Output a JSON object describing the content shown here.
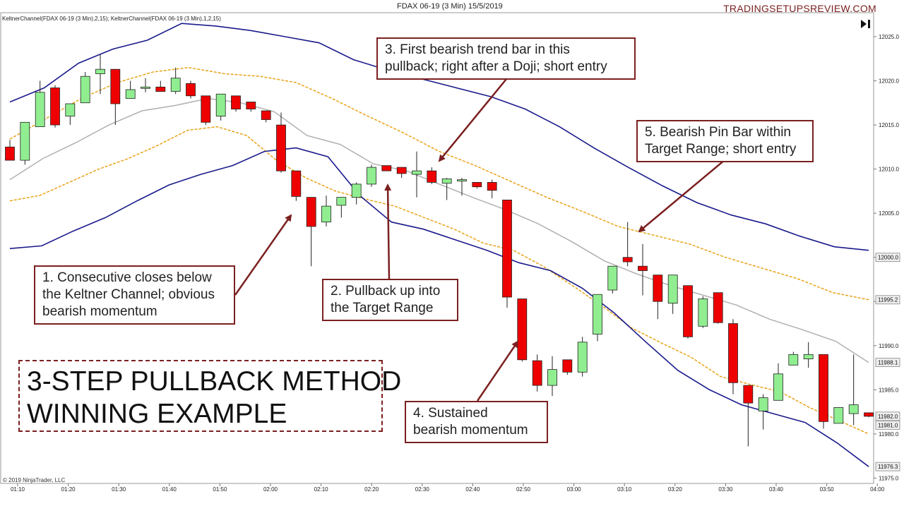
{
  "header": {
    "title": "FDAX 06-19 (3 Min)  15/5/2019",
    "brand": "TRADINGSETUPSREVIEW.COM",
    "indicator_label": "KeltnerChannel(FDAX 06-19 (3 Min),2,15); KeltnerChannel(FDAX 06-19 (3 Min),1,2,15)",
    "copyright": "© 2019 NinjaTrader, LLC"
  },
  "headline": {
    "line1": "3-STEP PULLBACK METHOD",
    "line2": "WINNING EXAMPLE"
  },
  "annotations": [
    {
      "id": "a1",
      "lines": [
        "1. Consecutive closes below",
        "the Keltner Channel; obvious",
        "bearish momentum"
      ]
    },
    {
      "id": "a2",
      "lines": [
        "2. Pullback up into",
        "the Target Range"
      ]
    },
    {
      "id": "a3",
      "lines": [
        "3. First bearish trend bar in this",
        "pullback; right after a Doji; short entry"
      ]
    },
    {
      "id": "a4",
      "lines": [
        "4. Sustained",
        "bearish momentum"
      ]
    },
    {
      "id": "a5",
      "lines": [
        "5. Bearish Pin Bar within",
        "Target Range; short entry"
      ]
    }
  ],
  "colors": {
    "bull": "#90ee90",
    "bear": "#ee0000",
    "outer_band": "#1a1a8c",
    "inner_band": "#e8a317",
    "mid_line": "#b0b0b0",
    "annotation": "#7b2020"
  },
  "chart_data": {
    "type": "candlestick",
    "y_axis": {
      "range": [
        11974,
        12027
      ],
      "ticks": [
        11975.0,
        11980.0,
        11985.0,
        11990.0,
        11995.0,
        12000.0,
        12005.0,
        12010.0,
        12015.0,
        12020.0,
        12025.0
      ],
      "price_markers": [
        "12000.0",
        "11995.2",
        "11988.1",
        "11982.0",
        "11981.0",
        "11976.3"
      ]
    },
    "x_axis": {
      "ticks": [
        "01:10",
        "01:20",
        "01:30",
        "01:40",
        "01:50",
        "02:00",
        "02:10",
        "02:20",
        "02:30",
        "02:40",
        "02:50",
        "03:00",
        "03:10",
        "03:20",
        "03:30",
        "03:40",
        "03:50",
        "04:00"
      ]
    },
    "candles": [
      {
        "o": 12012.5,
        "h": 12013.3,
        "l": 12011.0,
        "c": 12011.0
      },
      {
        "o": 12011.0,
        "h": 12015.3,
        "l": 12010.5,
        "c": 12015.3
      },
      {
        "o": 12014.8,
        "h": 12020.0,
        "l": 12014.8,
        "c": 12018.7
      },
      {
        "o": 12019.2,
        "h": 12019.5,
        "l": 12014.7,
        "c": 12015.0
      },
      {
        "o": 12016.0,
        "h": 12017.4,
        "l": 12015.0,
        "c": 12017.4
      },
      {
        "o": 12017.5,
        "h": 12021.0,
        "l": 12017.5,
        "c": 12020.5
      },
      {
        "o": 12020.8,
        "h": 12023.0,
        "l": 12018.5,
        "c": 12021.3
      },
      {
        "o": 12021.3,
        "h": 12021.3,
        "l": 12015.0,
        "c": 12017.4
      },
      {
        "o": 12018.0,
        "h": 12020.0,
        "l": 12018.0,
        "c": 12019.0
      },
      {
        "o": 12019.3,
        "h": 12020.3,
        "l": 12018.7,
        "c": 12019.3
      },
      {
        "o": 12019.3,
        "h": 12020.0,
        "l": 12018.8,
        "c": 12018.8
      },
      {
        "o": 12018.8,
        "h": 12021.5,
        "l": 12018.5,
        "c": 12020.3
      },
      {
        "o": 12019.7,
        "h": 12020.0,
        "l": 12018.0,
        "c": 12018.3
      },
      {
        "o": 12018.3,
        "h": 12018.3,
        "l": 12015.0,
        "c": 12015.3
      },
      {
        "o": 12016.0,
        "h": 12018.5,
        "l": 12015.5,
        "c": 12018.5
      },
      {
        "o": 12018.3,
        "h": 12018.3,
        "l": 12016.5,
        "c": 12016.8
      },
      {
        "o": 12017.6,
        "h": 12017.6,
        "l": 12016.5,
        "c": 12016.8
      },
      {
        "o": 12016.6,
        "h": 12016.6,
        "l": 12015.3,
        "c": 12015.6
      },
      {
        "o": 12015.0,
        "h": 12016.4,
        "l": 12009.6,
        "c": 12009.8
      },
      {
        "o": 12009.8,
        "h": 12009.8,
        "l": 12006.4,
        "c": 12006.9
      },
      {
        "o": 12006.8,
        "h": 12006.8,
        "l": 11999.0,
        "c": 12003.5
      },
      {
        "o": 12004.0,
        "h": 12007.0,
        "l": 12003.5,
        "c": 12005.8
      },
      {
        "o": 12005.9,
        "h": 12006.8,
        "l": 12004.5,
        "c": 12006.8
      },
      {
        "o": 12006.8,
        "h": 12008.5,
        "l": 12006.0,
        "c": 12008.3
      },
      {
        "o": 12008.3,
        "h": 12010.5,
        "l": 12008.0,
        "c": 12010.2
      },
      {
        "o": 12010.4,
        "h": 12010.4,
        "l": 12009.8,
        "c": 12009.8
      },
      {
        "o": 12010.2,
        "h": 12010.2,
        "l": 12009.0,
        "c": 12009.5
      },
      {
        "o": 12009.4,
        "h": 12012.0,
        "l": 12006.8,
        "c": 12009.8
      },
      {
        "o": 12009.8,
        "h": 12010.2,
        "l": 12008.3,
        "c": 12008.5
      },
      {
        "o": 12008.4,
        "h": 12009.0,
        "l": 12006.5,
        "c": 12008.9
      },
      {
        "o": 12008.8,
        "h": 12009.0,
        "l": 12007.0,
        "c": 12008.8
      },
      {
        "o": 12008.5,
        "h": 12008.5,
        "l": 12007.8,
        "c": 12008.0
      },
      {
        "o": 12008.5,
        "h": 12008.8,
        "l": 12006.7,
        "c": 12007.6
      },
      {
        "o": 12006.5,
        "h": 12006.5,
        "l": 11994.3,
        "c": 11995.5
      },
      {
        "o": 11995.3,
        "h": 11995.3,
        "l": 11988.2,
        "c": 11988.4
      },
      {
        "o": 11988.3,
        "h": 11989.0,
        "l": 11984.8,
        "c": 11985.5
      },
      {
        "o": 11985.5,
        "h": 11988.8,
        "l": 11984.3,
        "c": 11987.3
      },
      {
        "o": 11988.4,
        "h": 11988.4,
        "l": 11986.7,
        "c": 11987.0
      },
      {
        "o": 11987.0,
        "h": 11991.0,
        "l": 11986.5,
        "c": 11990.4
      },
      {
        "o": 11991.3,
        "h": 11995.8,
        "l": 11990.5,
        "c": 11995.8
      },
      {
        "o": 11996.3,
        "h": 11999.0,
        "l": 11995.9,
        "c": 11999.0
      },
      {
        "o": 12000.0,
        "h": 12004.0,
        "l": 11999.0,
        "c": 11999.5
      },
      {
        "o": 11999.0,
        "h": 12001.5,
        "l": 11995.7,
        "c": 11998.5
      },
      {
        "o": 11998.0,
        "h": 11998.0,
        "l": 11993.0,
        "c": 11995.0
      },
      {
        "o": 11994.8,
        "h": 11998.0,
        "l": 11993.6,
        "c": 11998.0
      },
      {
        "o": 11996.8,
        "h": 11996.8,
        "l": 11990.8,
        "c": 11991.0
      },
      {
        "o": 11992.2,
        "h": 11995.6,
        "l": 11992.0,
        "c": 11995.3
      },
      {
        "o": 11996.0,
        "h": 11996.0,
        "l": 11992.5,
        "c": 11992.6
      },
      {
        "o": 11992.5,
        "h": 11993.0,
        "l": 11984.5,
        "c": 11985.8
      },
      {
        "o": 11985.5,
        "h": 11985.5,
        "l": 11978.6,
        "c": 11983.5
      },
      {
        "o": 11982.6,
        "h": 11984.5,
        "l": 11980.5,
        "c": 11984.1
      },
      {
        "o": 11983.8,
        "h": 11988.0,
        "l": 11983.8,
        "c": 11986.8
      },
      {
        "o": 11987.8,
        "h": 11989.3,
        "l": 11988.0,
        "c": 11989.0
      },
      {
        "o": 11988.5,
        "h": 11990.4,
        "l": 11987.5,
        "c": 11989.0
      },
      {
        "o": 11989.0,
        "h": 11989.0,
        "l": 11980.6,
        "c": 11981.4
      },
      {
        "o": 11981.2,
        "h": 11983.0,
        "l": 11981.2,
        "c": 11983.0
      },
      {
        "o": 11982.3,
        "h": 11989.0,
        "l": 11981.0,
        "c": 11983.3
      },
      {
        "o": 11982.4,
        "h": 11982.4,
        "l": 11981.9,
        "c": 11982.0
      }
    ],
    "keltner_outer_upper": [
      12017.6,
      12019.2,
      12022.0,
      12023.6,
      12024.6,
      12026.5,
      12026.2,
      12025.7,
      12025.0,
      12024.3,
      12022.4,
      12021.2,
      12020.2,
      12019.2,
      12018.2,
      12016.8,
      12014.8,
      12012.4,
      12010.2,
      12008.1,
      12006.2,
      12004.8,
      12003.8,
      12002.4,
      12001.2,
      12000.8
    ],
    "keltner_outer_lower": [
      12001.0,
      12001.3,
      12003.0,
      12004.5,
      12006.4,
      12008.2,
      12009.4,
      12010.4,
      12012.0,
      12012.4,
      12011.4,
      12007.0,
      12004.0,
      12003.2,
      12002.0,
      12000.8,
      11999.4,
      11998.5,
      11996.5,
      11993.7,
      11990.4,
      11987.2,
      11985.0,
      11983.3,
      11982.3,
      11981.3,
      11979.0,
      11976.3
    ],
    "keltner_inner_upper": [
      12013.4,
      12015.7,
      12018.0,
      12019.8,
      12021.0,
      12021.5,
      12020.8,
      12020.5,
      12019.8,
      12018.0,
      12016.0,
      12014.1,
      12012.0,
      12010.4,
      12008.6,
      12006.8,
      12005.2,
      12003.5,
      12002.5,
      12001.5,
      12000.0,
      11998.8,
      11997.6,
      11996.0,
      11995.2
    ],
    "keltner_inner_lower": [
      12006.4,
      12007.0,
      12008.5,
      12010.0,
      12011.2,
      12012.7,
      12014.4,
      12014.8,
      12013.8,
      12011.0,
      12009.0,
      12007.5,
      12006.6,
      12005.8,
      12004.5,
      12003.2,
      12001.6,
      12000.8,
      11999.0,
      11996.8,
      11994.5,
      11992.0,
      11990.3,
      11988.7,
      11986.5,
      11985.6,
      11984.8,
      11983.0,
      11981.5,
      11980.0
    ],
    "keltner_mid": [
      12008.8,
      12011.2,
      12013.0,
      12015.0,
      12016.6,
      12017.2,
      12018.0,
      12017.5,
      12016.5,
      12013.8,
      12012.8,
      12010.6,
      12009.8,
      12008.3,
      12006.8,
      12005.4,
      12003.8,
      12001.8,
      11999.6,
      11998.1,
      11996.8,
      11995.7,
      11994.6,
      11993.0,
      11991.8,
      11990.5,
      11988.1
    ]
  }
}
